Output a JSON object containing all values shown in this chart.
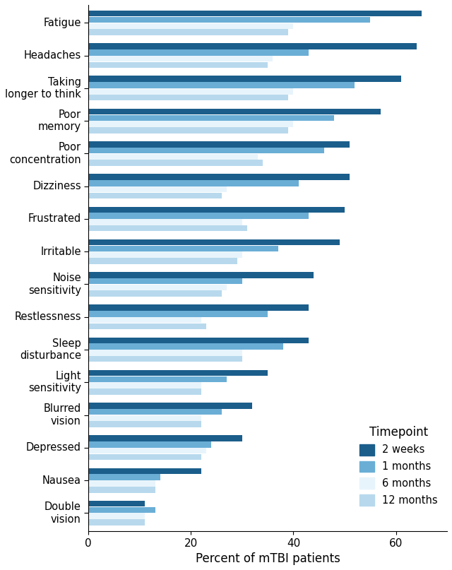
{
  "categories": [
    "Fatigue",
    "Headaches",
    "Taking\nlonger to think",
    "Poor\nmemory",
    "Poor\nconcentration",
    "Dizziness",
    "Frustrated",
    "Irritable",
    "Noise\nsensitivity",
    "Restlessness",
    "Sleep\ndisturbance",
    "Light\nsensitivity",
    "Blurred\nvision",
    "Depressed",
    "Nausea",
    "Double\nvision"
  ],
  "values_2weeks": [
    65,
    64,
    61,
    57,
    51,
    51,
    50,
    49,
    44,
    43,
    43,
    35,
    32,
    30,
    22,
    11
  ],
  "values_1month": [
    55,
    43,
    52,
    48,
    46,
    41,
    43,
    37,
    30,
    35,
    38,
    27,
    26,
    24,
    14,
    13
  ],
  "values_6months": [
    40,
    36,
    40,
    40,
    33,
    27,
    30,
    30,
    27,
    22,
    30,
    22,
    22,
    23,
    13,
    11
  ],
  "values_12months": [
    39,
    35,
    39,
    39,
    34,
    26,
    31,
    29,
    26,
    23,
    30,
    22,
    22,
    22,
    13,
    11
  ],
  "color_2weeks": "#1b5e8b",
  "color_1month": "#6aaed6",
  "color_6months": "#e8f4fb",
  "color_12months": "#b8d9ed",
  "xlabel": "Percent of mTBI patients",
  "xlim_min": 0,
  "xlim_max": 70,
  "xticks": [
    0,
    20,
    40,
    60
  ],
  "legend_title": "Timepoint",
  "legend_labels": [
    "2 weeks",
    "1 months",
    "6 months",
    "12 months"
  ],
  "figwidth": 6.4,
  "figheight": 8.07,
  "dpi": 100
}
